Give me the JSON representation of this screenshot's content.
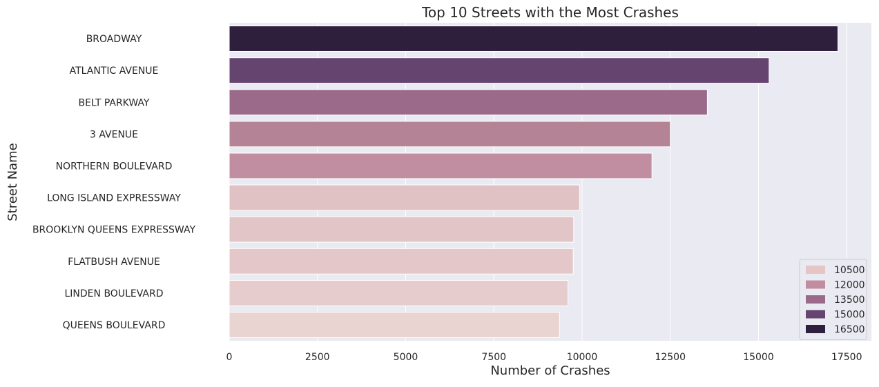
{
  "chart_data": {
    "type": "bar",
    "orientation": "horizontal",
    "title": "Top 10 Streets with the Most Crashes",
    "xlabel": "Number of Crashes",
    "ylabel": "Street Name",
    "xlim": [
      0,
      18200
    ],
    "xticks": [
      0,
      2500,
      5000,
      7500,
      10000,
      12500,
      15000,
      17500
    ],
    "grid": true,
    "legend_placement": "bottom-right",
    "categories": [
      "BROADWAY",
      "ATLANTIC AVENUE",
      "BELT PARKWAY",
      "3 AVENUE",
      "NORTHERN BOULEVARD",
      "LONG ISLAND EXPRESSWAY",
      "BROOKLYN QUEENS EXPRESSWAY",
      "FLATBUSH AVENUE",
      "LINDEN BOULEVARD",
      "QUEENS BOULEVARD"
    ],
    "values": [
      17250,
      15300,
      13550,
      12500,
      11980,
      9930,
      9760,
      9750,
      9600,
      9360
    ],
    "colors": [
      "#2e1f3c",
      "#664470",
      "#9b6a8b",
      "#b58396",
      "#c18ea1",
      "#e0c2c4",
      "#e2c5c6",
      "#e4c8c9",
      "#e6cccc",
      "#e9d4d2"
    ],
    "legend": [
      {
        "label": "10500",
        "color": "#e5c5c6"
      },
      {
        "label": "12000",
        "color": "#c18ea1"
      },
      {
        "label": "13500",
        "color": "#9b6a8b"
      },
      {
        "label": "15000",
        "color": "#664470"
      },
      {
        "label": "16500",
        "color": "#2e1f3c"
      }
    ],
    "plot_background": "#eaeaf2",
    "grid_color": "#ffffff"
  }
}
